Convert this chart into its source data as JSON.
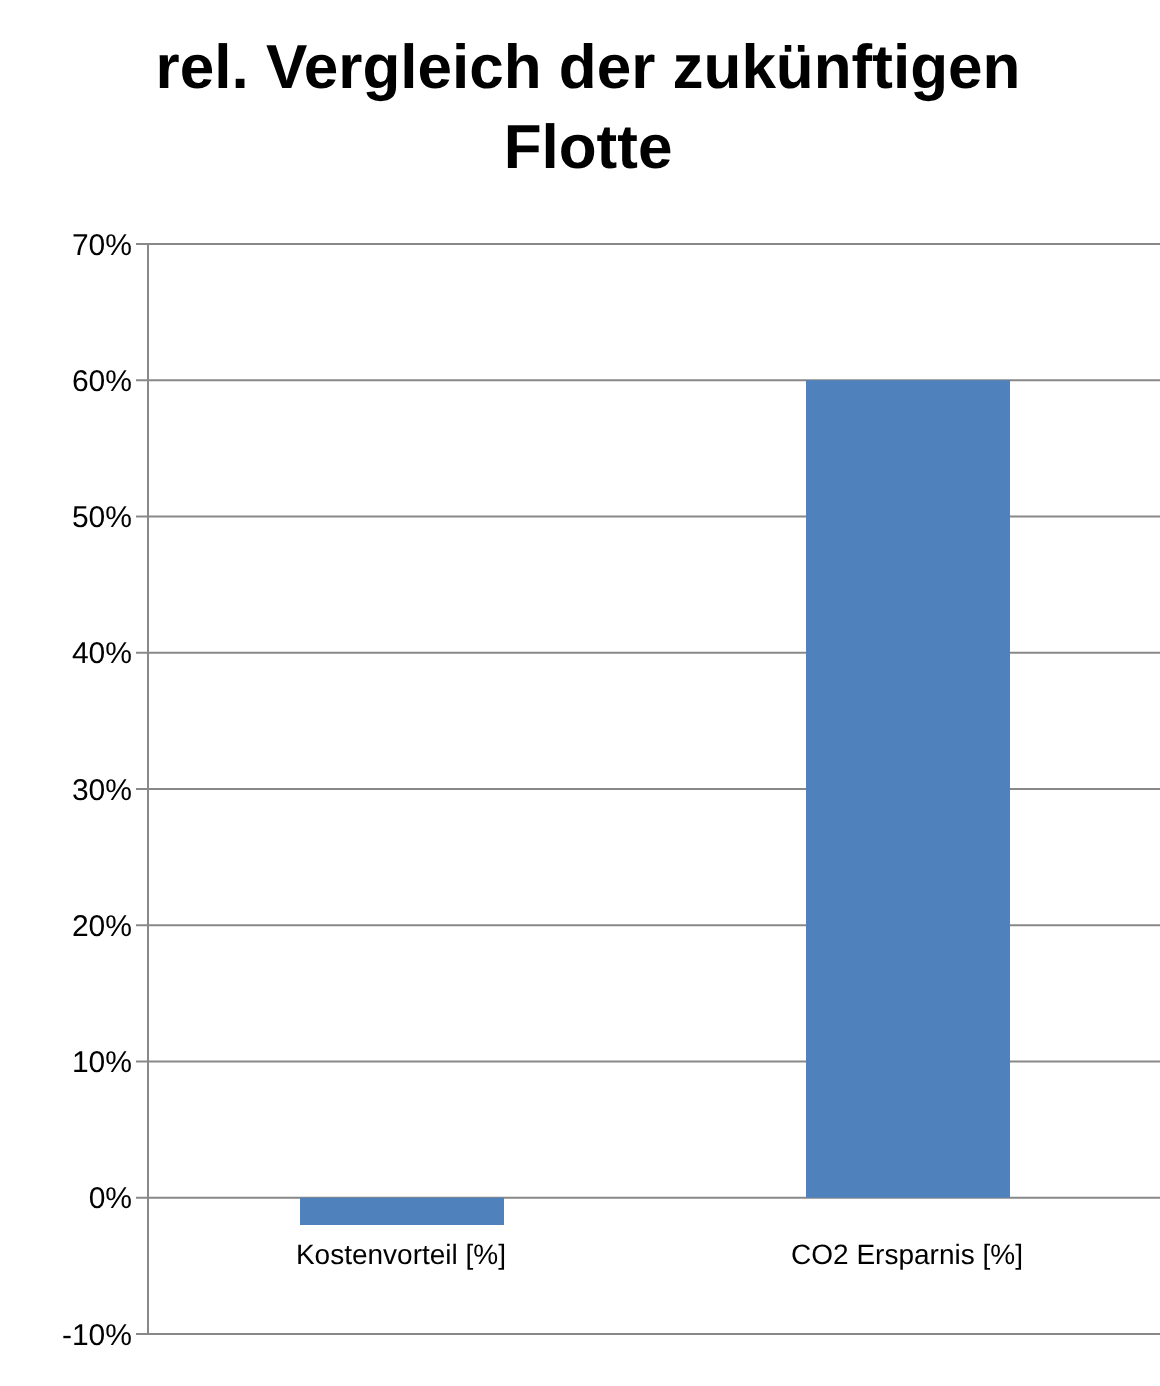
{
  "chart_data": {
    "type": "bar",
    "title": "rel. Vergleich der zukünftigen Flotte",
    "categories": [
      "Kostenvorteil [%]",
      "CO2 Ersparnis [%]"
    ],
    "values": [
      -2,
      60
    ],
    "color": "#4f81bd",
    "ylim": [
      -10,
      70
    ],
    "yticks": [
      {
        "value": -10,
        "label": "-10%"
      },
      {
        "value": 0,
        "label": "0%"
      },
      {
        "value": 10,
        "label": "10%"
      },
      {
        "value": 20,
        "label": "20%"
      },
      {
        "value": 30,
        "label": "30%"
      },
      {
        "value": 40,
        "label": "40%"
      },
      {
        "value": 50,
        "label": "50%"
      },
      {
        "value": 60,
        "label": "60%"
      },
      {
        "value": 70,
        "label": "70%"
      }
    ],
    "grid": "y"
  }
}
